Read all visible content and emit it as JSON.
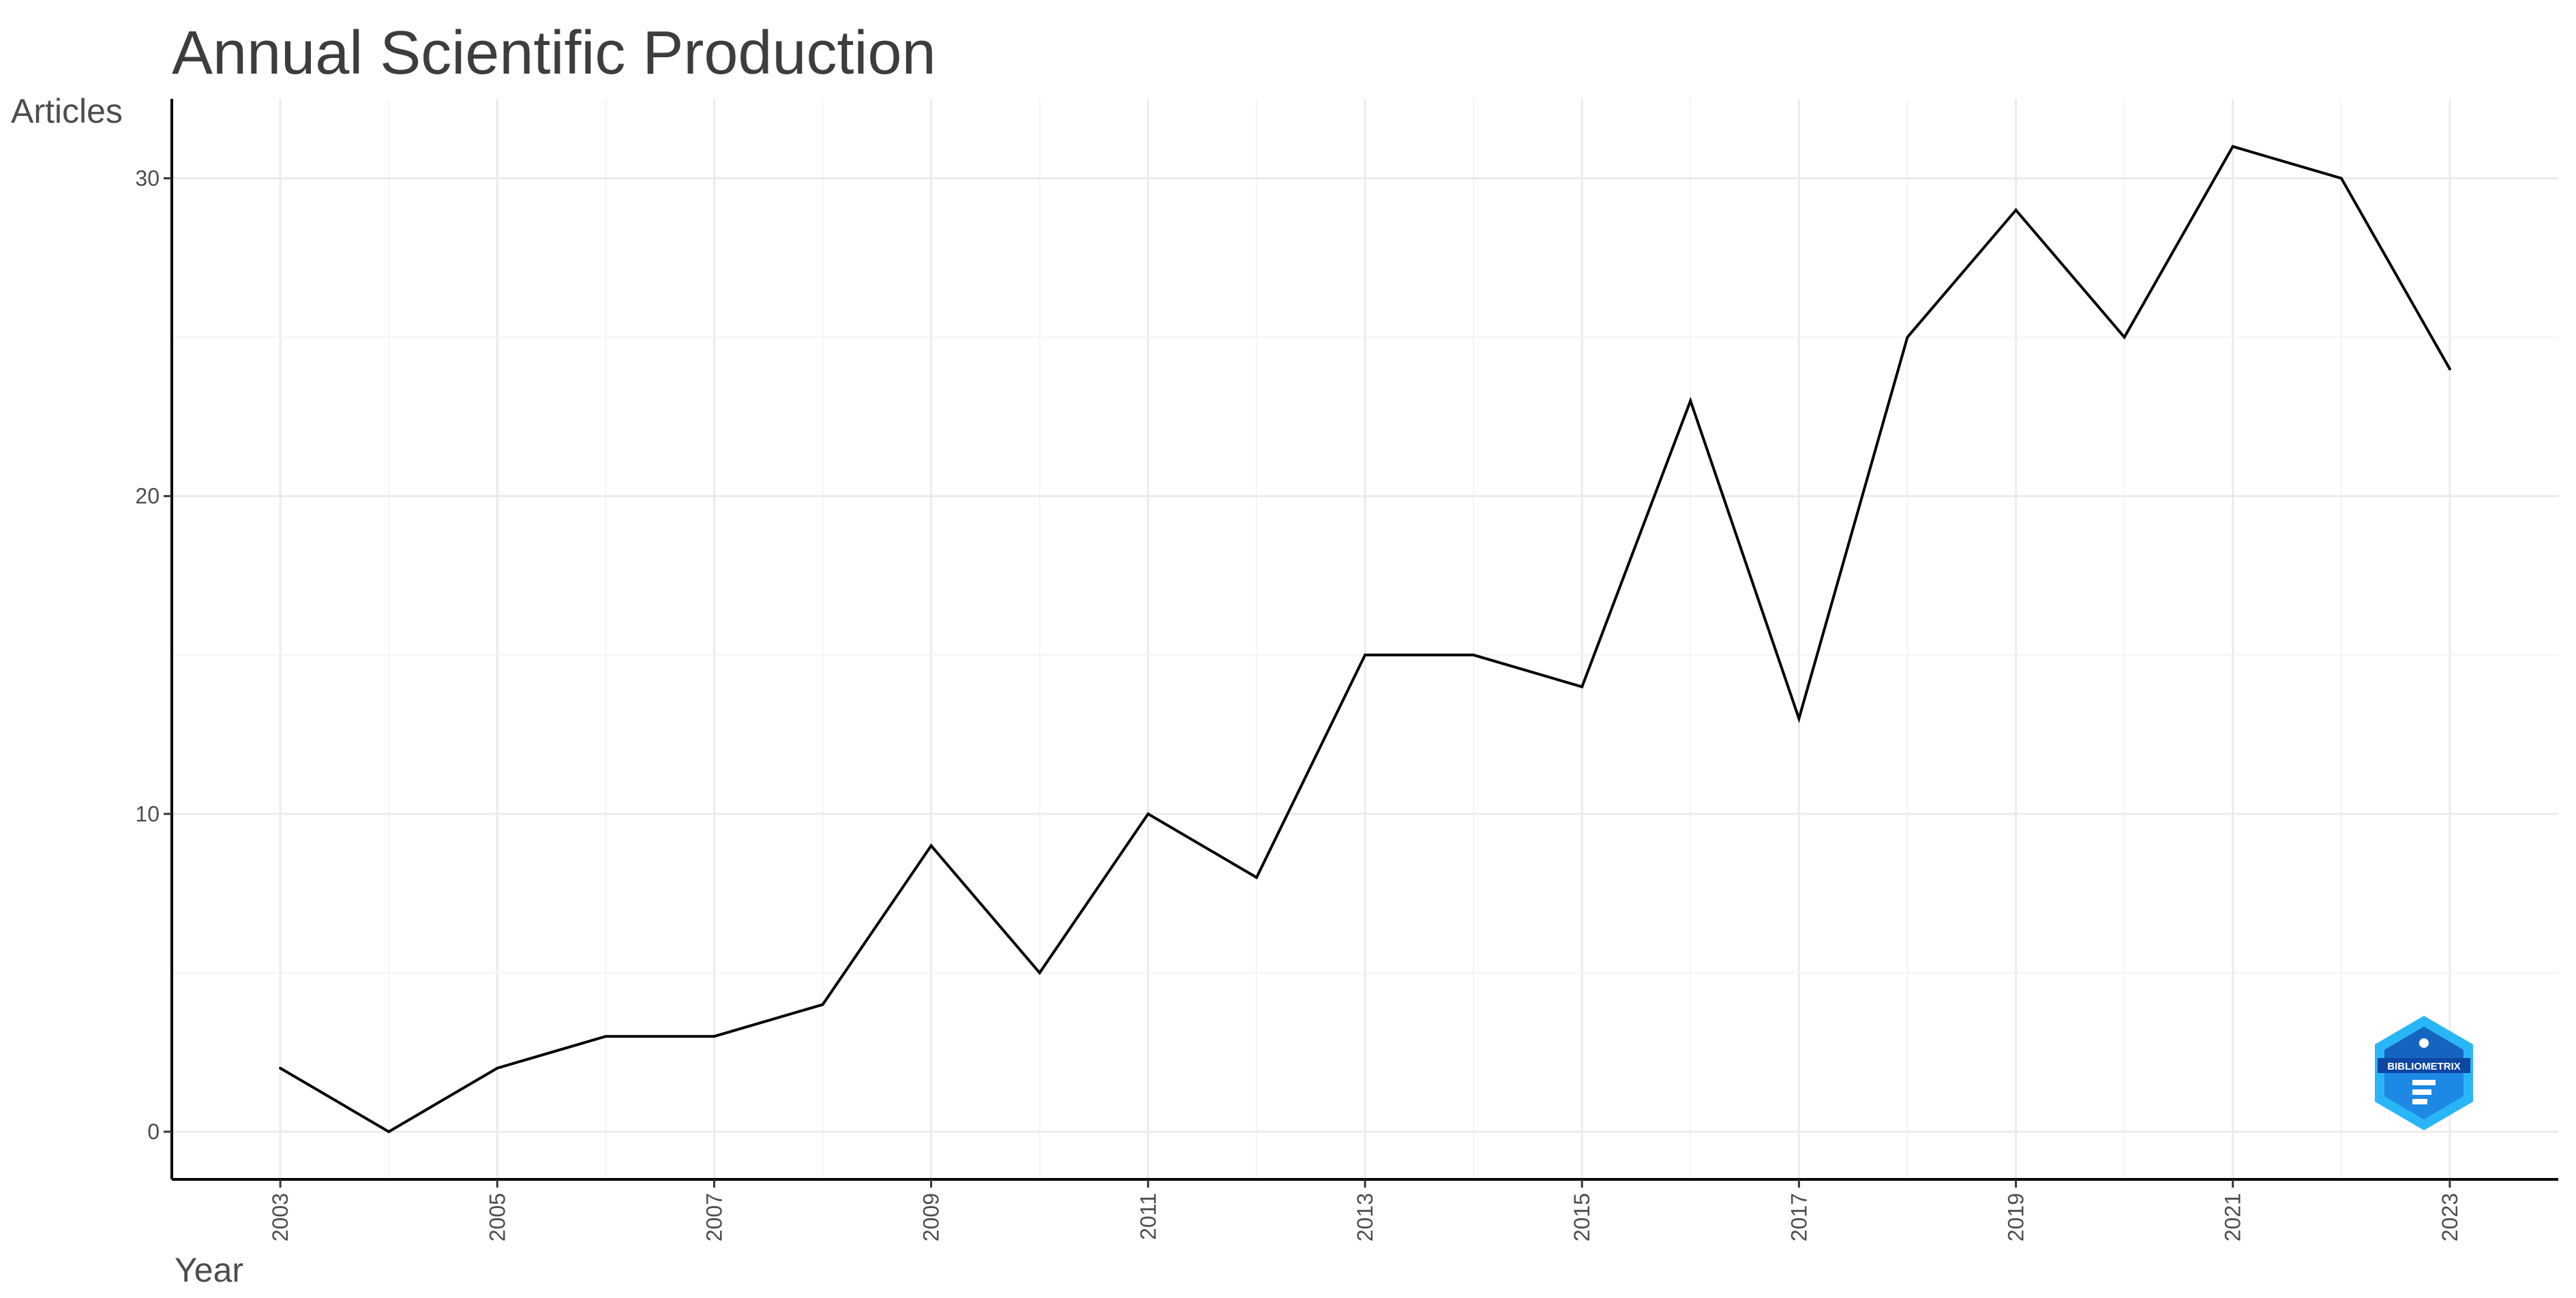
{
  "chart_data": {
    "type": "line",
    "title": "Annual Scientific Production",
    "xlabel": "Year",
    "ylabel": "Articles",
    "x": [
      2003,
      2004,
      2005,
      2006,
      2007,
      2008,
      2009,
      2010,
      2011,
      2012,
      2013,
      2014,
      2015,
      2016,
      2017,
      2018,
      2019,
      2020,
      2021,
      2022,
      2023
    ],
    "series": [
      {
        "values": [
          2,
          0,
          2,
          3,
          3,
          4,
          9,
          5,
          10,
          8,
          15,
          15,
          14,
          23,
          13,
          25,
          29,
          25,
          31,
          30,
          24
        ]
      }
    ],
    "x_ticks": [
      "2003",
      "2005",
      "2007",
      "2009",
      "2011",
      "2013",
      "2015",
      "2017",
      "2019",
      "2021",
      "2023"
    ],
    "y_ticks": [
      "0",
      "10",
      "20",
      "30"
    ],
    "xlim": [
      2002,
      2024
    ],
    "ylim": [
      -1.5,
      32.5
    ],
    "grid": true,
    "line_color": "#000000"
  },
  "logo": {
    "name": "bibliometrix-logo-icon",
    "text": "BIBLIOMETRIX",
    "colors": [
      "#1565c0",
      "#1e88e5",
      "#29b6f6"
    ]
  }
}
